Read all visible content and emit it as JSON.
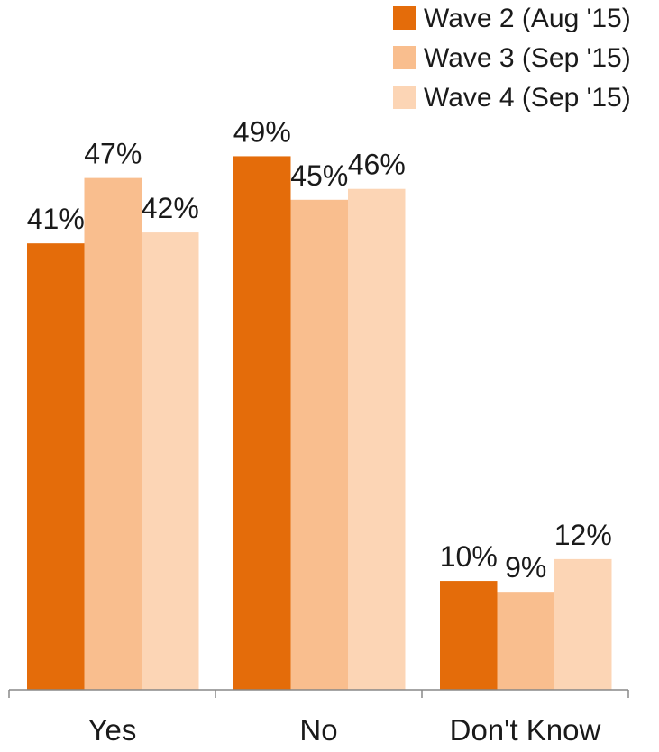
{
  "chart_data": {
    "type": "bar",
    "categories": [
      "Yes",
      "No",
      "Don't Know"
    ],
    "series": [
      {
        "name": "Wave 2 (Aug '15)",
        "values": [
          41,
          49,
          10
        ],
        "labels": [
          "41%",
          "49%",
          "10%"
        ],
        "color": "#E46C0A"
      },
      {
        "name": "Wave 3 (Sep '15)",
        "values": [
          47,
          45,
          9
        ],
        "labels": [
          "47%",
          "45%",
          "9%"
        ],
        "color": "#F9BE8E"
      },
      {
        "name": "Wave 4 (Sep '15)",
        "values": [
          42,
          46,
          12
        ],
        "labels": [
          "42%",
          "46%",
          "12%"
        ],
        "color": "#FCD5B5"
      }
    ],
    "ylim": [
      0,
      50
    ],
    "unit": "%",
    "grid": false,
    "legend": "top-right",
    "axis_color": "#888888"
  }
}
